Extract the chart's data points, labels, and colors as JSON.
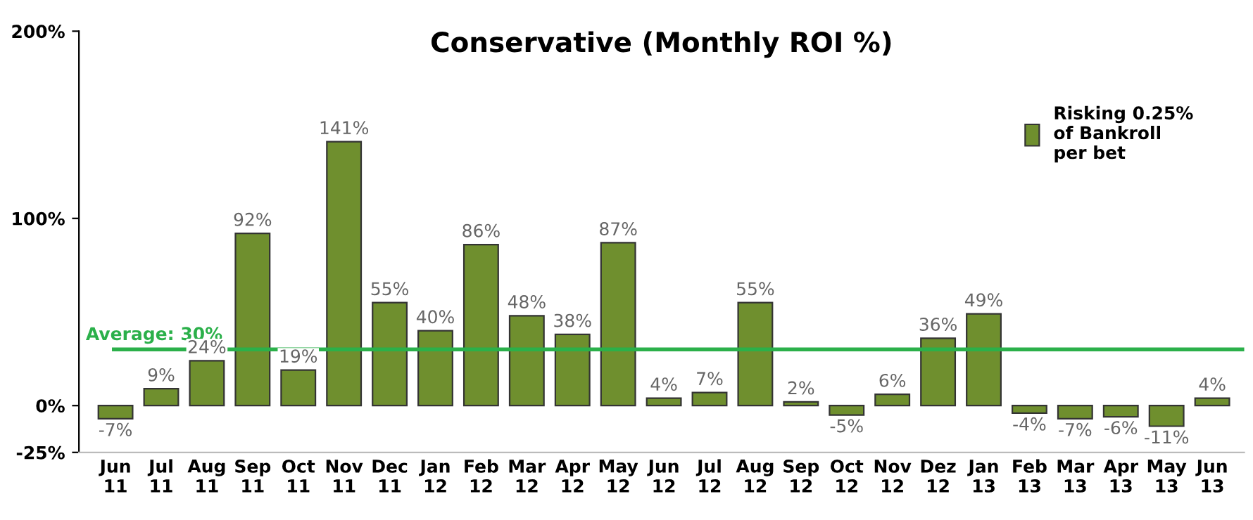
{
  "chart_data": {
    "type": "bar",
    "title": "Conservative (Monthly ROI %)",
    "categories": [
      "Jun\n11",
      "Jul\n11",
      "Aug\n11",
      "Sep\n11",
      "Oct\n11",
      "Nov\n11",
      "Dec\n11",
      "Jan\n12",
      "Feb\n12",
      "Mar\n12",
      "Apr\n12",
      "May\n12",
      "Jun\n12",
      "Jul\n12",
      "Aug\n12",
      "Sep\n12",
      "Oct\n12",
      "Nov\n12",
      "Dez\n12",
      "Jan\n13",
      "Feb\n13",
      "Mar\n13",
      "Apr\n13",
      "May\n13",
      "Jun\n13"
    ],
    "series": [
      {
        "name": "Risking 0.25%\nof Bankroll\nper bet",
        "color": "#6f8f2e",
        "values": [
          -7,
          9,
          24,
          92,
          19,
          141,
          55,
          40,
          86,
          48,
          38,
          87,
          4,
          7,
          55,
          2,
          -5,
          6,
          36,
          49,
          -4,
          -7,
          -6,
          -11,
          4
        ],
        "value_labels": [
          "-7%",
          "9%",
          "24%",
          "92%",
          "19%",
          "141%",
          "55%",
          "40%",
          "86%",
          "48%",
          "38%",
          "87%",
          "4%",
          "7%",
          "55%",
          "2%",
          "-5%",
          "6%",
          "36%",
          "49%",
          "-4%",
          "-7%",
          "-6%",
          "-11%",
          "4%"
        ]
      }
    ],
    "ylim": [
      -25,
      200
    ],
    "yticks": [
      {
        "value": -25,
        "label": "-25%"
      },
      {
        "value": 0,
        "label": "0%"
      },
      {
        "value": 100,
        "label": "100%"
      },
      {
        "value": 200,
        "label": "200%"
      }
    ],
    "ref_lines": [
      {
        "axis": "y",
        "value": 30,
        "label": "Average: 30%",
        "color": "#2bb04a"
      }
    ],
    "legend": "top right",
    "grid": false
  }
}
